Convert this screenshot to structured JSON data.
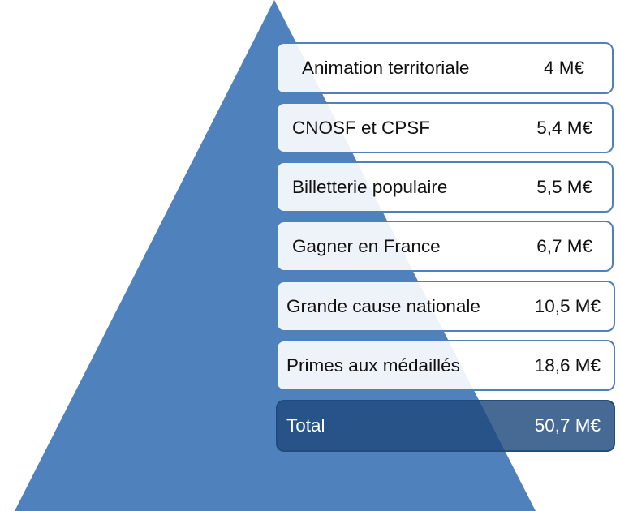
{
  "colors": {
    "pyramid_fill": "#4f81bd",
    "row_border": "#4f81bd",
    "row_fill": "#ffffff",
    "total_fill": "#1f497d",
    "total_text": "#ffffff"
  },
  "items": [
    {
      "label": "Animation territoriale",
      "value": "4 M€"
    },
    {
      "label": "CNOSF et CPSF",
      "value": "5,4 M€"
    },
    {
      "label": "Billetterie populaire",
      "value": "5,5 M€"
    },
    {
      "label": "Gagner en France",
      "value": "6,7 M€"
    },
    {
      "label": "Grande cause nationale",
      "value": "10,5 M€"
    },
    {
      "label": "Primes aux médaillés",
      "value": "18,6 M€"
    }
  ],
  "total": {
    "label": "Total",
    "value": "50,7 M€"
  }
}
